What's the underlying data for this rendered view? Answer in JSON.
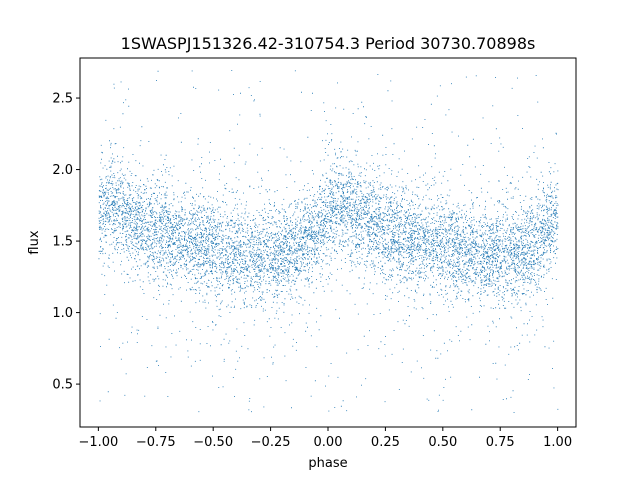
{
  "chart_data": {
    "type": "scatter",
    "title": "1SWASPJ151326.42-310754.3 Period 30730.70898s",
    "xlabel": "phase",
    "ylabel": "flux",
    "xlim": [
      -1.08,
      1.08
    ],
    "ylim": [
      0.2,
      2.78
    ],
    "xticks": [
      -1.0,
      -0.75,
      -0.5,
      -0.25,
      0.0,
      0.25,
      0.5,
      0.75,
      1.0
    ],
    "xtick_labels": [
      "−1.00",
      "−0.75",
      "−0.50",
      "−0.25",
      "0.00",
      "0.25",
      "0.50",
      "0.75",
      "1.00"
    ],
    "yticks": [
      0.5,
      1.0,
      1.5,
      2.0,
      2.5
    ],
    "ytick_labels": [
      "0.5",
      "1.0",
      "1.5",
      "2.0",
      "2.5"
    ],
    "grid": false,
    "point_color": "#1f77b4",
    "series": [
      {
        "x_range": [
          -1.0,
          1.0
        ],
        "period_in_phase": 1.0,
        "profile": {
          "phase": [
            0.0,
            0.05,
            0.15,
            0.25,
            0.35,
            0.45,
            0.55,
            0.65,
            0.75,
            0.85,
            0.95,
            1.0
          ],
          "flux": [
            1.7,
            1.76,
            1.66,
            1.58,
            1.52,
            1.47,
            1.44,
            1.41,
            1.4,
            1.43,
            1.58,
            1.7
          ]
        },
        "scatter_sigma": 0.16,
        "outlier_range": [
          0.3,
          2.7
        ]
      }
    ]
  }
}
